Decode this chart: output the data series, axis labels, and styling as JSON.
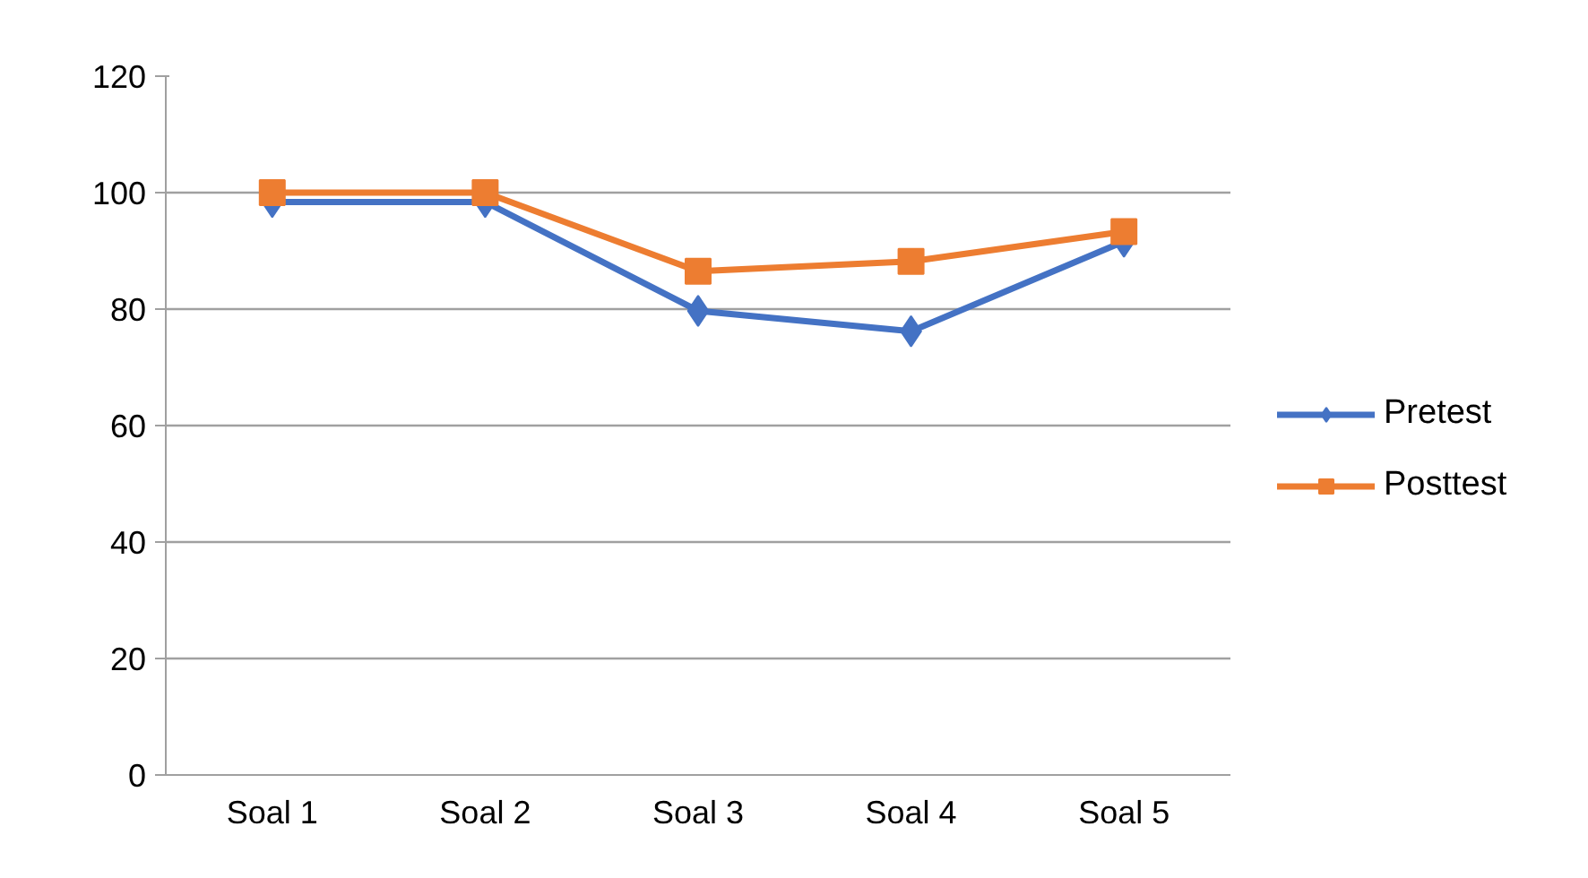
{
  "chart_data": {
    "type": "line",
    "categories": [
      "Soal 1",
      "Soal 2",
      "Soal 3",
      "Soal 4",
      "Soal 5"
    ],
    "series": [
      {
        "name": "Pretest",
        "color": "#4472c4",
        "marker": "diamond",
        "values": [
          98.4,
          98.4,
          79.7,
          76.2,
          91.6
        ]
      },
      {
        "name": "Posttest",
        "color": "#ed7d31",
        "marker": "square",
        "values": [
          100,
          100,
          86.5,
          88.2,
          93.3
        ]
      }
    ],
    "ylim": [
      0,
      120
    ],
    "yticks": [
      0,
      20,
      40,
      60,
      80,
      100,
      120
    ],
    "grid": "y",
    "legend": "right",
    "line_style": "solid"
  }
}
